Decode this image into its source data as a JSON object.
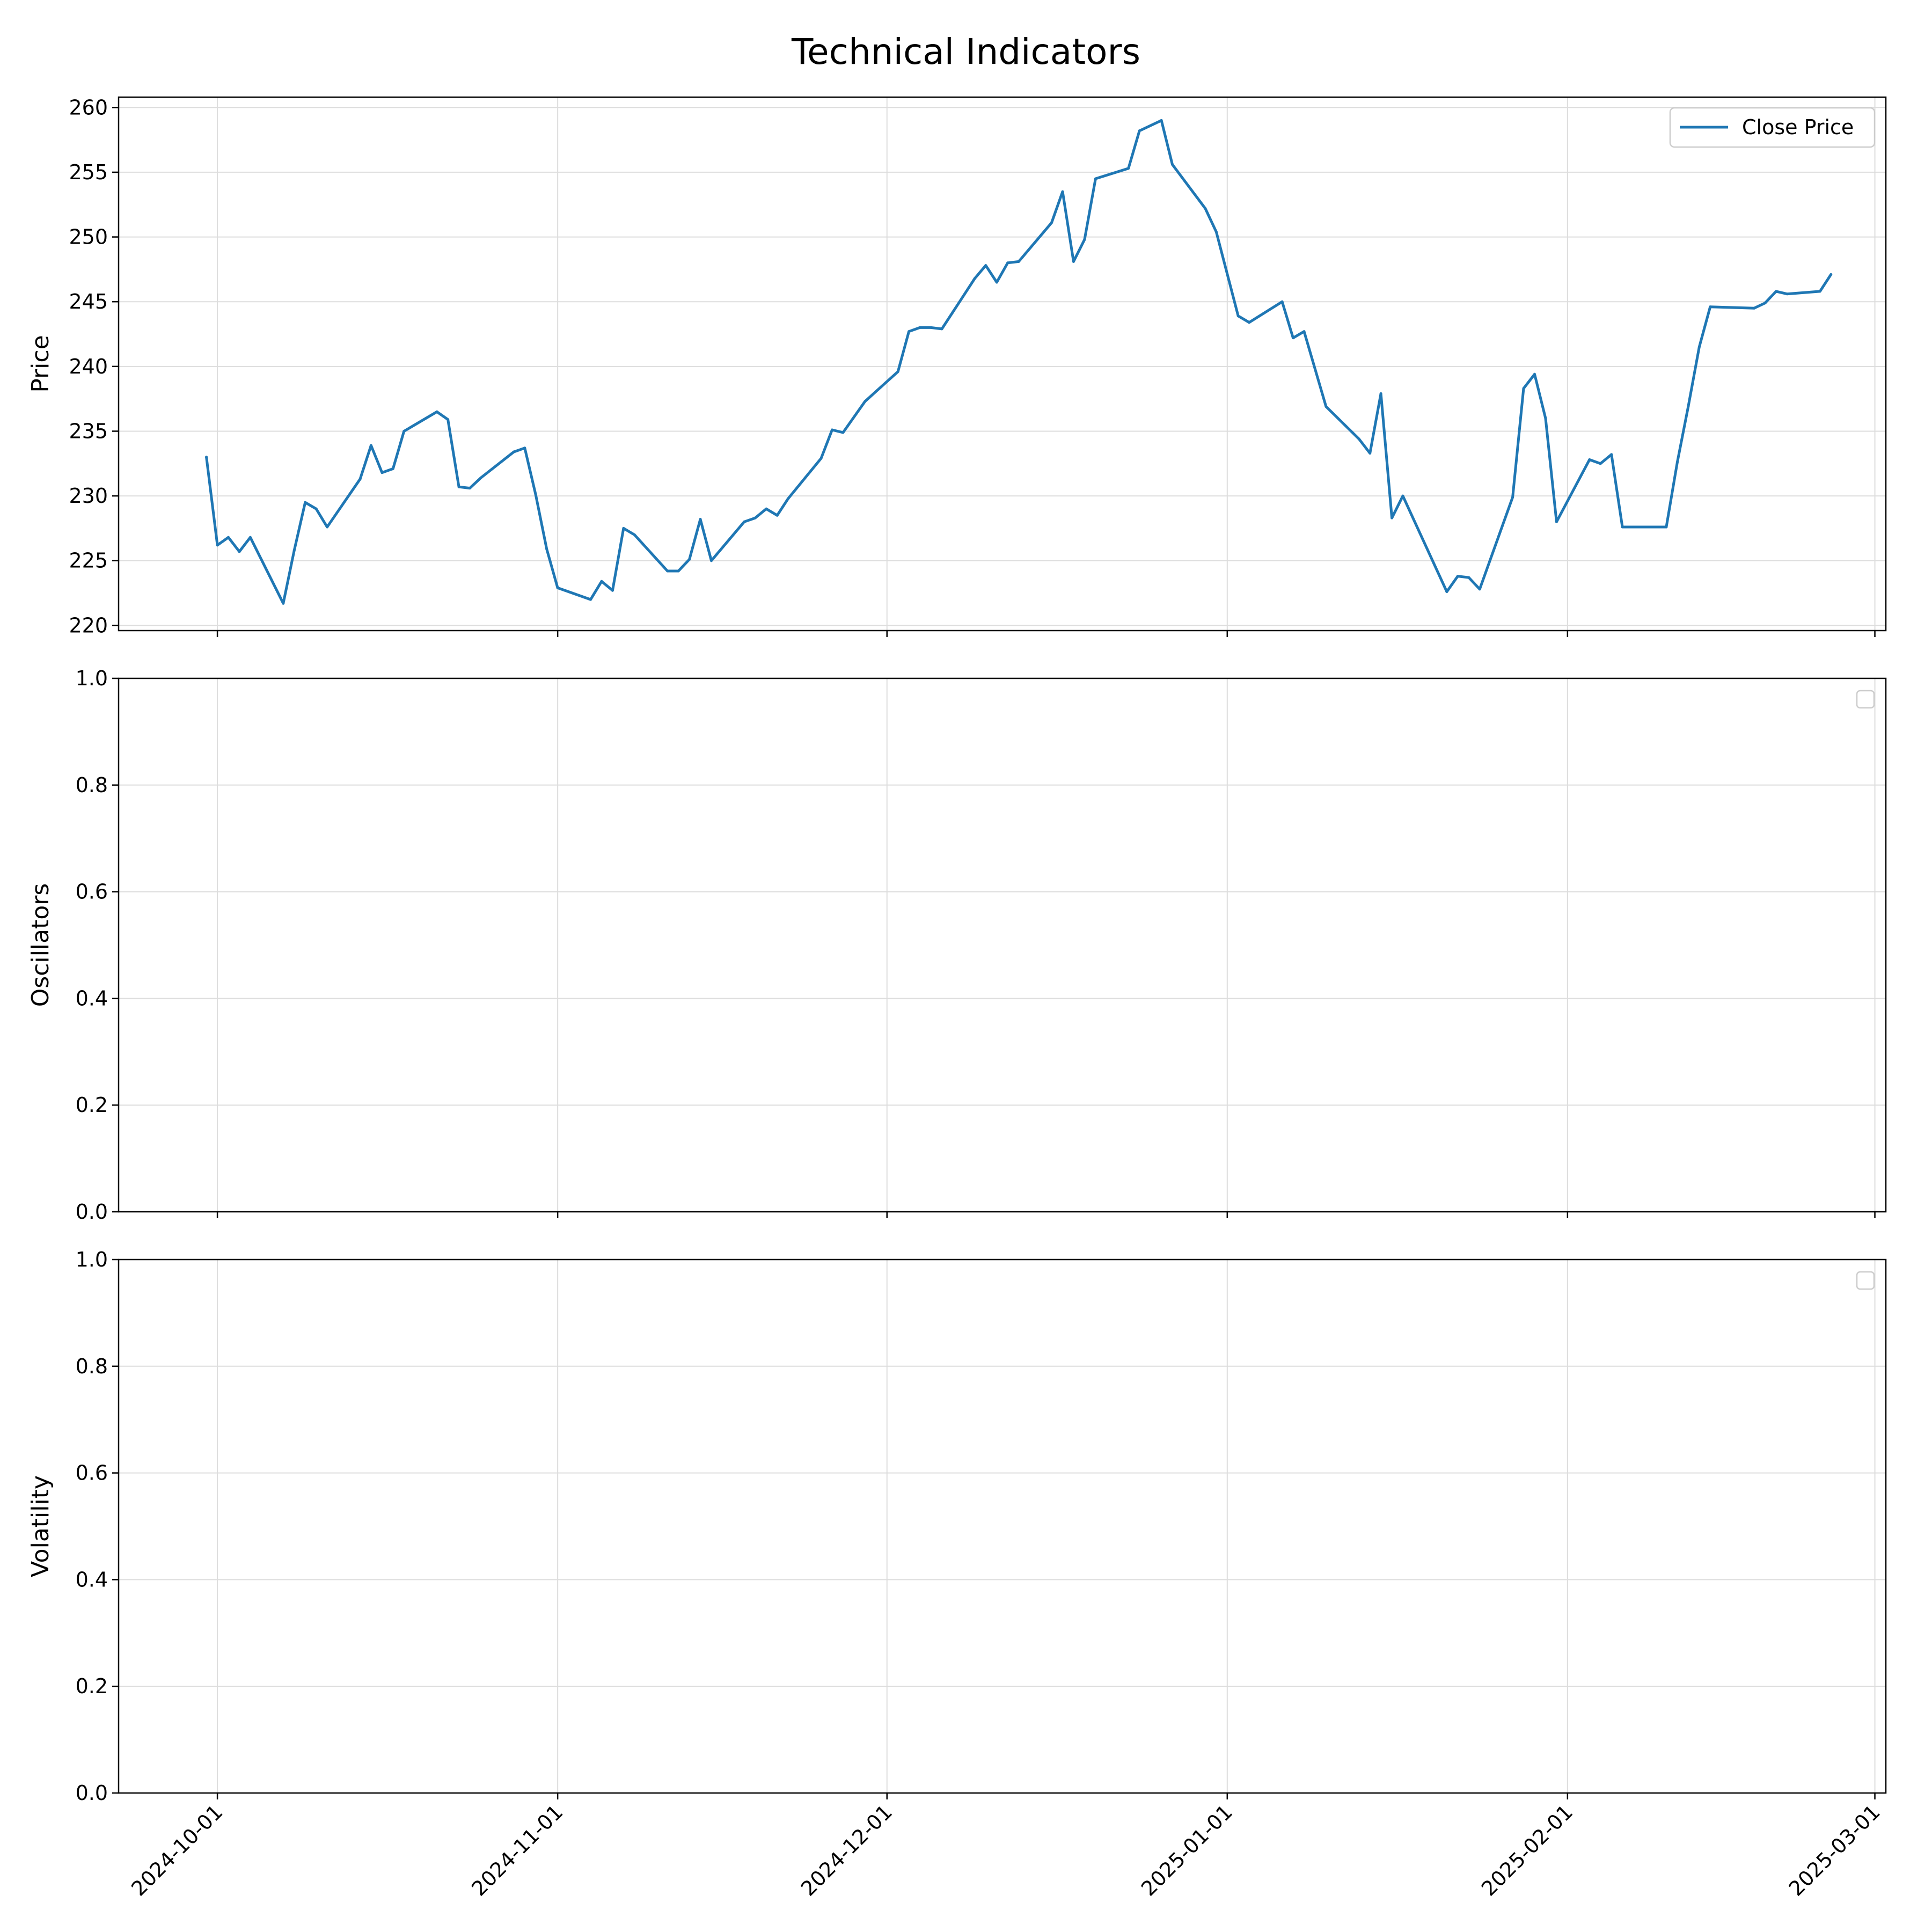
{
  "figure": {
    "title": "Technical Indicators"
  },
  "chart_data": [
    {
      "type": "line",
      "ylabel": "Price",
      "ylim": [
        219.6,
        260.8
      ],
      "yticks": [
        "220",
        "225",
        "230",
        "235",
        "240",
        "245",
        "250",
        "255",
        "260"
      ],
      "xlim": [
        "2024-09-22",
        "2025-03-02"
      ],
      "grid": true,
      "legend": {
        "placement": "top-right",
        "entries": [
          "Close Price"
        ]
      },
      "colors": {
        "series": "#1f77b4",
        "grid": "#dddddd"
      },
      "series": [
        {
          "name": "Close Price",
          "x": [
            "2024-09-30",
            "2024-10-01",
            "2024-10-02",
            "2024-10-03",
            "2024-10-04",
            "2024-10-07",
            "2024-10-08",
            "2024-10-09",
            "2024-10-10",
            "2024-10-11",
            "2024-10-14",
            "2024-10-15",
            "2024-10-16",
            "2024-10-17",
            "2024-10-18",
            "2024-10-21",
            "2024-10-22",
            "2024-10-23",
            "2024-10-24",
            "2024-10-25",
            "2024-10-28",
            "2024-10-29",
            "2024-10-30",
            "2024-10-31",
            "2024-11-01",
            "2024-11-04",
            "2024-11-05",
            "2024-11-06",
            "2024-11-07",
            "2024-11-08",
            "2024-11-11",
            "2024-11-12",
            "2024-11-13",
            "2024-11-14",
            "2024-11-15",
            "2024-11-18",
            "2024-11-19",
            "2024-11-20",
            "2024-11-21",
            "2024-11-22",
            "2024-11-25",
            "2024-11-26",
            "2024-11-27",
            "2024-11-29",
            "2024-12-02",
            "2024-12-03",
            "2024-12-04",
            "2024-12-05",
            "2024-12-06",
            "2024-12-09",
            "2024-12-10",
            "2024-12-11",
            "2024-12-12",
            "2024-12-13",
            "2024-12-16",
            "2024-12-17",
            "2024-12-18",
            "2024-12-19",
            "2024-12-20",
            "2024-12-23",
            "2024-12-24",
            "2024-12-26",
            "2024-12-27",
            "2024-12-30",
            "2024-12-31",
            "2025-01-02",
            "2025-01-03",
            "2025-01-06",
            "2025-01-07",
            "2025-01-08",
            "2025-01-10",
            "2025-01-13",
            "2025-01-14",
            "2025-01-15",
            "2025-01-16",
            "2025-01-17",
            "2025-01-21",
            "2025-01-22",
            "2025-01-23",
            "2025-01-24",
            "2025-01-27",
            "2025-01-28",
            "2025-01-29",
            "2025-01-30",
            "2025-01-31",
            "2025-02-03",
            "2025-02-04",
            "2025-02-05",
            "2025-02-06",
            "2025-02-07",
            "2025-02-10",
            "2025-02-11",
            "2025-02-12",
            "2025-02-13",
            "2025-02-14",
            "2025-02-18",
            "2025-02-19",
            "2025-02-20",
            "2025-02-21",
            "2025-02-24",
            "2025-02-25"
          ],
          "values": [
            233.0,
            226.2,
            226.8,
            225.7,
            226.8,
            221.7,
            225.8,
            229.5,
            229.0,
            227.6,
            231.3,
            233.9,
            231.8,
            232.1,
            235.0,
            236.5,
            235.9,
            230.7,
            230.6,
            231.4,
            233.4,
            233.7,
            230.1,
            225.9,
            222.9,
            222.0,
            223.4,
            222.7,
            227.5,
            227.0,
            224.2,
            224.2,
            225.1,
            228.2,
            225.0,
            228.0,
            228.3,
            229.0,
            228.5,
            229.8,
            232.9,
            235.1,
            234.9,
            237.3,
            239.6,
            242.7,
            243.0,
            243.0,
            242.9,
            246.8,
            247.8,
            246.5,
            248.0,
            248.1,
            251.1,
            253.5,
            248.1,
            249.8,
            254.5,
            255.3,
            258.2,
            259.0,
            255.6,
            252.2,
            250.4,
            243.9,
            243.4,
            245.0,
            242.2,
            242.7,
            236.9,
            234.4,
            233.3,
            237.9,
            228.3,
            230.0,
            222.6,
            223.8,
            223.7,
            222.8,
            229.9,
            238.3,
            239.4,
            236.0,
            228.0,
            232.8,
            232.5,
            233.2,
            227.6,
            227.6,
            227.6,
            232.6,
            236.9,
            241.5,
            244.6,
            244.5,
            244.9,
            245.8,
            245.6,
            245.8,
            247.1
          ]
        }
      ]
    },
    {
      "type": "line",
      "ylabel": "Oscillators",
      "ylim": [
        0.0,
        1.0
      ],
      "yticks": [
        "0.0",
        "0.2",
        "0.4",
        "0.6",
        "0.8",
        "1.0"
      ],
      "xlim": [
        "2024-09-22",
        "2025-03-02"
      ],
      "grid": true,
      "legend": {
        "placement": "top-right",
        "entries": []
      },
      "series": []
    },
    {
      "type": "line",
      "ylabel": "Volatility",
      "ylim": [
        0.0,
        1.0
      ],
      "yticks": [
        "0.0",
        "0.2",
        "0.4",
        "0.6",
        "0.8",
        "1.0"
      ],
      "xlim": [
        "2024-09-22",
        "2025-03-02"
      ],
      "grid": true,
      "legend": {
        "placement": "top-right",
        "entries": []
      },
      "series": []
    }
  ],
  "x_axis": {
    "ticks": [
      "2024-10-01",
      "2024-11-01",
      "2024-12-01",
      "2025-01-01",
      "2025-02-01",
      "2025-03-01"
    ]
  }
}
